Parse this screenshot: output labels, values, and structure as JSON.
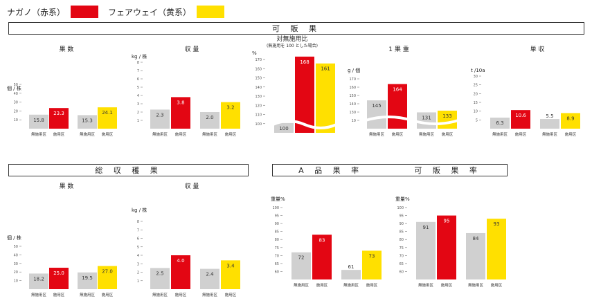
{
  "legend": {
    "nagano": {
      "label": "ナガノ（赤系）",
      "color": "#e30613"
    },
    "fairway": {
      "label": "フェアウェイ（黄系）",
      "color": "#ffe000"
    }
  },
  "colors": {
    "control": "#d0d0d0"
  },
  "sections": {
    "kahan": "可 販 果",
    "soushukaku": "総 収 穫 果",
    "aHin": "A 品 果 率",
    "kahanRitsu": "可 販 果 率"
  },
  "chart_data": [
    {
      "id": "c1",
      "type": "bar",
      "title": "果 数",
      "ylabel": "個 / 株",
      "ticks": [
        "10",
        "20",
        "30",
        "40",
        "50"
      ],
      "ylim": [
        0,
        50
      ],
      "categories": [
        "無施用区",
        "施用区",
        "無施用区",
        "施用区"
      ],
      "values": [
        15.8,
        23.3,
        15.3,
        24.1
      ],
      "labels": [
        "15.8",
        "23.3",
        "15.3",
        "24.1"
      ]
    },
    {
      "id": "c2",
      "type": "bar",
      "title": "収 量",
      "ylabel": "kg / 株",
      "ticks": [
        "1",
        "2",
        "3",
        "4",
        "5",
        "6",
        "7",
        "8"
      ],
      "ylim": [
        0,
        8
      ],
      "categories": [
        "無施用区",
        "施用区",
        "無施用区",
        "施用区"
      ],
      "values": [
        2.3,
        3.8,
        2.0,
        3.2
      ],
      "labels": [
        "2.3",
        "3.8",
        "2.0",
        "3.2"
      ]
    },
    {
      "id": "c3",
      "type": "bar",
      "title": "対無施用比",
      "subtitle": "(無施用を 100 とした場合)",
      "ylabel": "%",
      "ticks": [
        "100",
        "110",
        "120",
        "130",
        "140",
        "150",
        "160",
        "170"
      ],
      "ylim": [
        90,
        170
      ],
      "broken_axis": true,
      "categories": [
        "",
        "",
        ""
      ],
      "values": [
        100,
        168,
        161
      ],
      "labels": [
        "100",
        "168",
        "161"
      ]
    },
    {
      "id": "c4",
      "type": "bar",
      "title": "1 果 重",
      "ylabel": "g / 個",
      "ticks": [
        "10",
        "130",
        "140",
        "150",
        "160",
        "170"
      ],
      "ylim": [
        112,
        170
      ],
      "broken_axis": true,
      "categories": [
        "無施用区",
        "施用区",
        "無施用区",
        "施用区"
      ],
      "values": [
        145,
        164,
        131,
        133
      ],
      "labels": [
        "145",
        "164",
        "131",
        "133"
      ]
    },
    {
      "id": "c5",
      "type": "bar",
      "title": "単 収",
      "ylabel": "t /10a",
      "ticks": [
        "5",
        "10",
        "15",
        "20",
        "25",
        "30"
      ],
      "ylim": [
        0,
        30
      ],
      "categories": [
        "無施用区",
        "施用区",
        "無施用区",
        "施用区"
      ],
      "values": [
        6.3,
        10.6,
        5.5,
        8.9
      ],
      "labels": [
        "6.3",
        "10.6",
        "5.5",
        "8.9"
      ]
    },
    {
      "id": "c6",
      "type": "bar",
      "title": "果 数",
      "ylabel": "個 / 株",
      "ticks": [
        "10",
        "20",
        "30",
        "40",
        "50"
      ],
      "ylim": [
        0,
        50
      ],
      "categories": [
        "無施用区",
        "施用区",
        "無施用区",
        "施用区"
      ],
      "values": [
        18.2,
        25.0,
        19.5,
        27.0
      ],
      "labels": [
        "18.2",
        "25.0",
        "19.5",
        "27.0"
      ]
    },
    {
      "id": "c7",
      "type": "bar",
      "title": "収 量",
      "ylabel": "kg / 株",
      "ticks": [
        "1",
        "2",
        "3",
        "4",
        "5",
        "6",
        "7",
        "8"
      ],
      "ylim": [
        0,
        8
      ],
      "categories": [
        "無施用区",
        "施用区",
        "無施用区",
        "施用区"
      ],
      "values": [
        2.5,
        4.0,
        2.4,
        3.4
      ],
      "labels": [
        "2.5",
        "4.0",
        "2.4",
        "3.4"
      ]
    },
    {
      "id": "c8",
      "type": "bar",
      "title": "",
      "ylabel": "重量%",
      "ticks": [
        "60",
        "65",
        "70",
        "75",
        "80",
        "85",
        "90",
        "95",
        "100"
      ],
      "ylim": [
        55,
        100
      ],
      "categories": [
        "無施用区",
        "施用区",
        "無施用区",
        "施用区"
      ],
      "values": [
        72,
        83,
        61,
        73
      ],
      "labels": [
        "72",
        "83",
        "61",
        "73"
      ]
    },
    {
      "id": "c9",
      "type": "bar",
      "title": "",
      "ylabel": "重量%",
      "ticks": [
        "60",
        "65",
        "70",
        "75",
        "80",
        "85",
        "90",
        "95",
        "100"
      ],
      "ylim": [
        55,
        100
      ],
      "categories": [
        "無施用区",
        "施用区",
        "無施用区",
        "施用区"
      ],
      "values": [
        91,
        95,
        84,
        93
      ],
      "labels": [
        "91",
        "95",
        "84",
        "93"
      ]
    }
  ]
}
